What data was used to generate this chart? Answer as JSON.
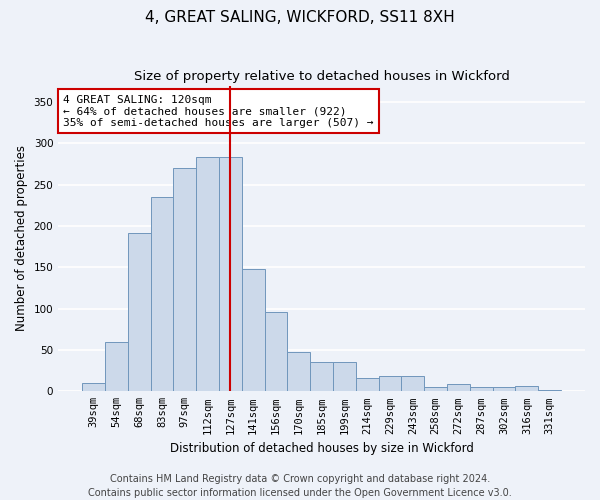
{
  "title": "4, GREAT SALING, WICKFORD, SS11 8XH",
  "subtitle": "Size of property relative to detached houses in Wickford",
  "xlabel": "Distribution of detached houses by size in Wickford",
  "ylabel": "Number of detached properties",
  "categories": [
    "39sqm",
    "54sqm",
    "68sqm",
    "83sqm",
    "97sqm",
    "112sqm",
    "127sqm",
    "141sqm",
    "156sqm",
    "170sqm",
    "185sqm",
    "199sqm",
    "214sqm",
    "229sqm",
    "243sqm",
    "258sqm",
    "272sqm",
    "287sqm",
    "302sqm",
    "316sqm",
    "331sqm"
  ],
  "values": [
    10,
    60,
    192,
    235,
    270,
    283,
    283,
    148,
    96,
    47,
    35,
    35,
    16,
    19,
    19,
    5,
    9,
    5,
    5,
    6,
    2
  ],
  "bar_color": "#ccd9ea",
  "bar_edge_color": "#7096bc",
  "vline_x_index": 6,
  "vline_color": "#cc0000",
  "annotation_text": "4 GREAT SALING: 120sqm\n← 64% of detached houses are smaller (922)\n35% of semi-detached houses are larger (507) →",
  "annotation_box_color": "#ffffff",
  "annotation_box_edge_color": "#cc0000",
  "ylim": [
    0,
    370
  ],
  "yticks": [
    0,
    50,
    100,
    150,
    200,
    250,
    300,
    350
  ],
  "footer1": "Contains HM Land Registry data © Crown copyright and database right 2024.",
  "footer2": "Contains public sector information licensed under the Open Government Licence v3.0.",
  "bg_color": "#eef2f9",
  "plot_bg_color": "#eef2f9",
  "grid_color": "#ffffff",
  "title_fontsize": 11,
  "subtitle_fontsize": 9.5,
  "label_fontsize": 8.5,
  "tick_fontsize": 7.5,
  "annotation_fontsize": 8,
  "footer_fontsize": 7
}
